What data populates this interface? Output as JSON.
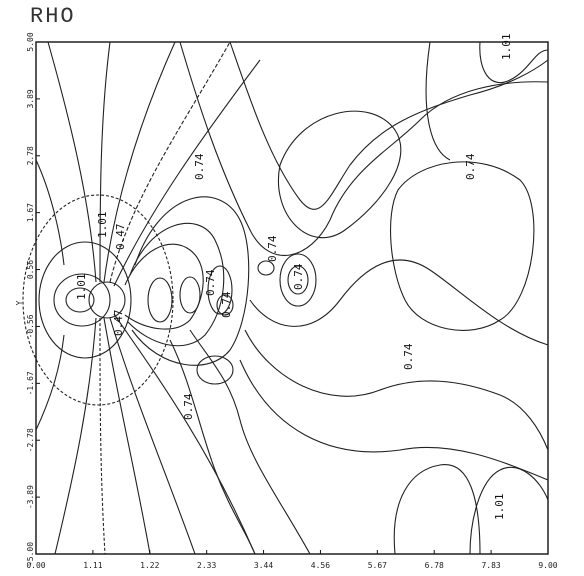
{
  "page": {
    "title": "RHO"
  },
  "chart_data": {
    "type": "contour",
    "title": "RHO",
    "xlabel": "",
    "ylabel": "Y",
    "xlim": [
      0.0,
      9.0
    ],
    "ylim": [
      -5.0,
      5.0
    ],
    "x_ticks": [
      "0.00",
      "1.11",
      "1.22",
      "2.33",
      "3.44",
      "4.56",
      "5.67",
      "6.78",
      "7.83",
      "9.00"
    ],
    "y_ticks": [
      "5.00",
      "3.89",
      "2.78",
      "1.67",
      "0.56",
      "-0.56",
      "-1.67",
      "-2.78",
      "-3.89",
      "-5.00"
    ],
    "grid": false,
    "contour_labels": [
      "1.01",
      "0.74",
      "0.74",
      "1.01",
      "0.47",
      "0.74",
      "0.74",
      "1.01",
      "0.74",
      "0.74",
      "0.74",
      "1.01",
      "0.47",
      "0.74"
    ]
  }
}
